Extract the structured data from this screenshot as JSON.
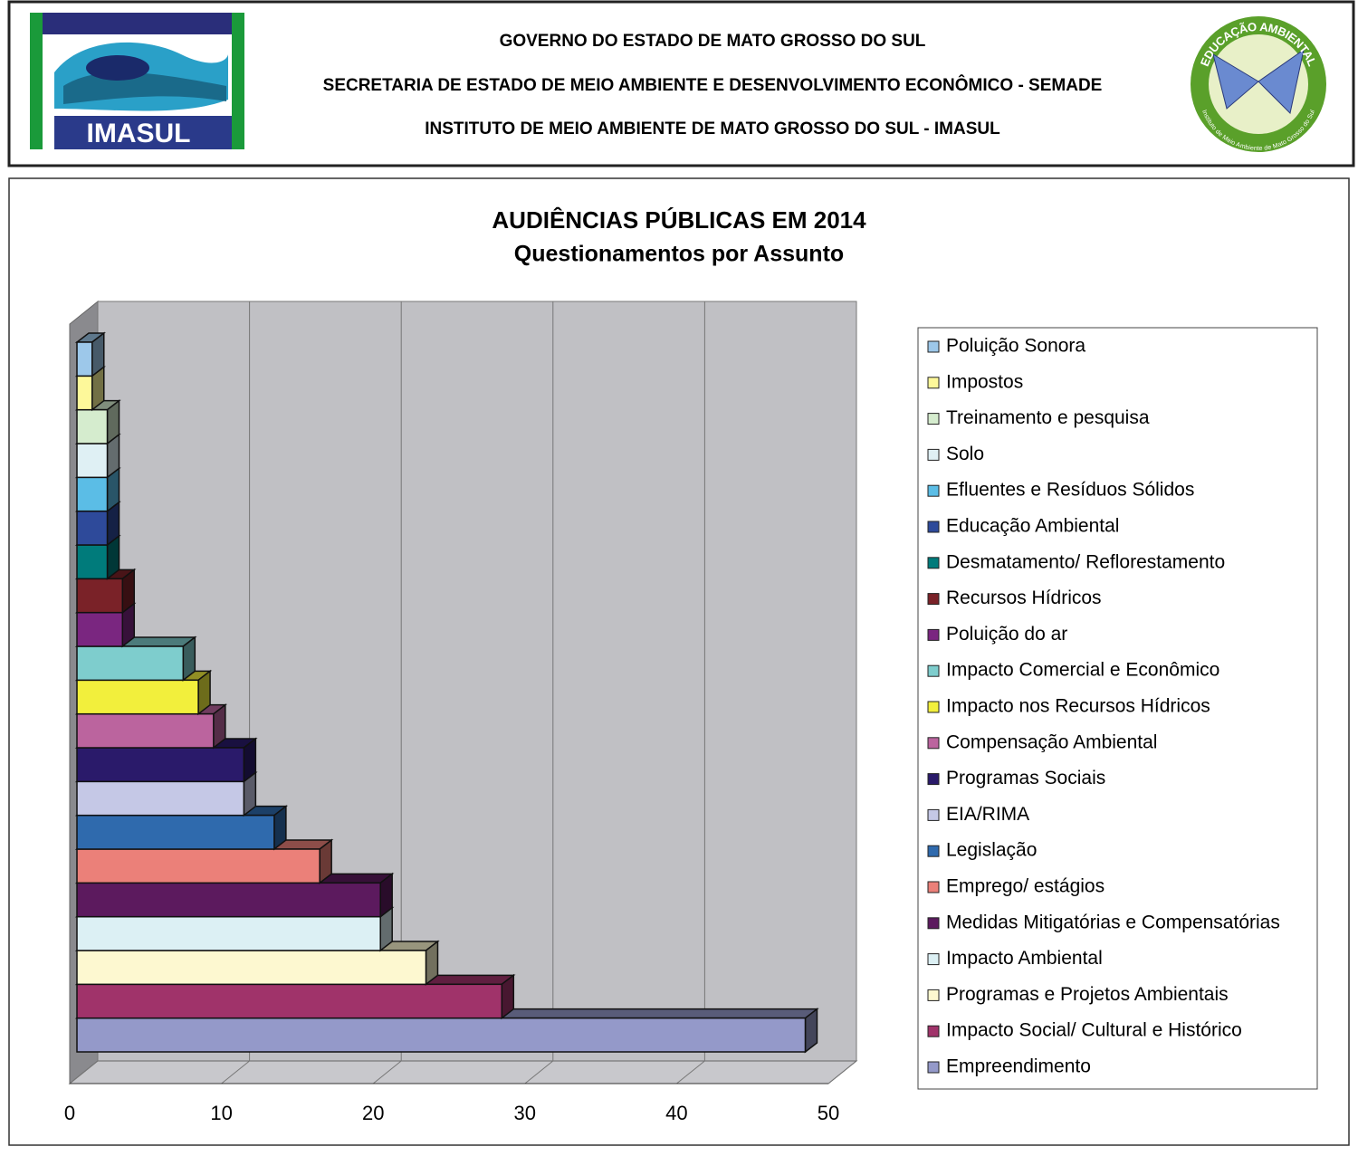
{
  "header": {
    "lines": [
      "GOVERNO DO ESTADO DE MATO GROSSO DO SUL",
      "SECRETARIA DE ESTADO DE MEIO AMBIENTE E DESENVOLVIMENTO ECONÔMICO - SEMADE",
      "INSTITUTO DE MEIO AMBIENTE DE MATO GROSSO DO SUL - IMASUL"
    ],
    "left_logo_text": "IMASUL",
    "right_logo_text": "EDUCAÇÃO AMBIENTAL",
    "right_logo_subtext": "Instituto de Meio Ambiente de Mato Grosso do Sul"
  },
  "chart_data": {
    "type": "bar3d",
    "orientation": "horizontal",
    "title": "AUDIÊNCIAS PÚBLICAS EM 2014",
    "subtitle": "Questionamentos por Assunto",
    "categories": [
      "Empreendimento",
      "Impacto Social/ Cultural e Histórico",
      "Programas e Projetos Ambientais",
      "Impacto Ambiental",
      "Medidas Mitigatórias e Compensatórias",
      "Emprego/ estágios",
      "Legislação",
      "EIA/RIMA",
      "Programas Sociais",
      "Compensação Ambiental",
      "Impacto nos Recursos Hídricos",
      "Impacto Comercial e Econômico",
      "Poluição do ar",
      "Recursos Hídricos",
      "Desmatamento/ Reflorestamento",
      "Educação Ambiental",
      "Efluentes e Resíduos Sólidos",
      "Solo",
      "Treinamento  e pesquisa",
      "Impostos",
      "Poluição Sonora"
    ],
    "values": [
      48,
      28,
      23,
      20,
      20,
      16,
      13,
      11,
      11,
      9,
      8,
      7,
      3,
      3,
      2,
      2,
      2,
      2,
      2,
      1,
      1
    ],
    "colors": [
      "#9499c9",
      "#a0336a",
      "#fdf8d0",
      "#dcf0f4",
      "#5c1a5e",
      "#eb8079",
      "#2f6aad",
      "#c5c8e6",
      "#2a1a6a",
      "#bb649e",
      "#f2ef3c",
      "#7ecdcd",
      "#7a2680",
      "#7a2228",
      "#007b7b",
      "#2e4a9a",
      "#5bbde6",
      "#dff0f4",
      "#d5ecce",
      "#fdf89a",
      "#9dc8ea"
    ],
    "xlim": [
      0,
      50
    ],
    "xticks": [
      0,
      10,
      20,
      30,
      40,
      50
    ],
    "grid": true,
    "legend": "right"
  }
}
